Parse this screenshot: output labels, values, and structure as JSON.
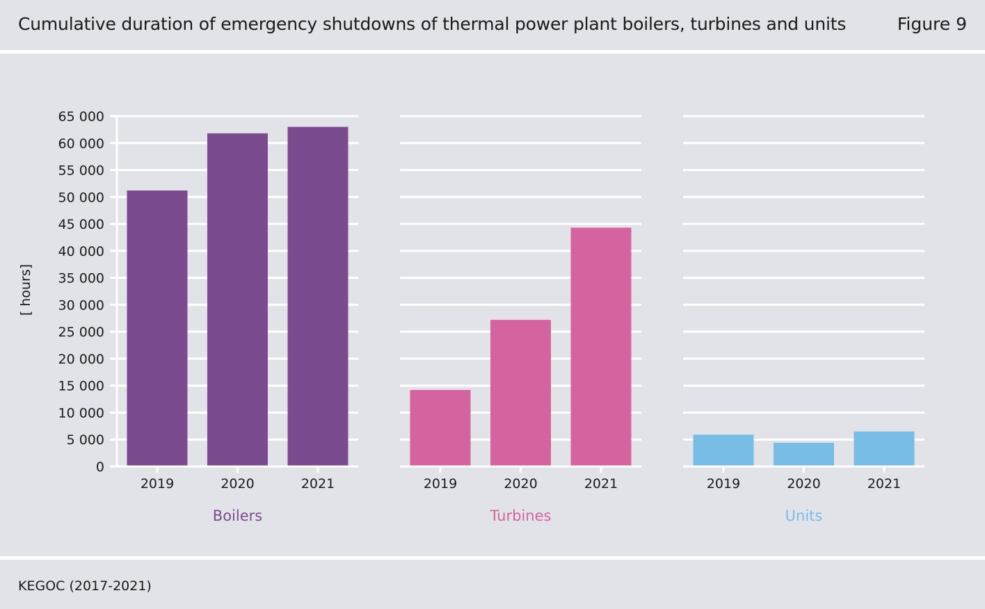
{
  "header": {
    "title": "Cumulative duration of emergency shutdowns of thermal power plant boilers, turbines and units",
    "figure_label": "Figure 9"
  },
  "footer": {
    "source": "KEGOC (2017-2021)"
  },
  "chart_data": {
    "type": "bar",
    "ylabel": "[ hours]",
    "ylim": [
      0,
      65000
    ],
    "yticks": [
      0,
      5000,
      10000,
      15000,
      20000,
      25000,
      30000,
      35000,
      40000,
      45000,
      50000,
      55000,
      60000,
      65000
    ],
    "ytick_labels": [
      "0",
      "5 000",
      "10 000",
      "15 000",
      "20 000",
      "25 000",
      "30 000",
      "35 000",
      "40 000",
      "45 000",
      "50 000",
      "55 000",
      "60 000",
      "65 000"
    ],
    "grid": true,
    "categories": [
      "2019",
      "2020",
      "2021"
    ],
    "groups": [
      {
        "name": "Boilers",
        "color": "#7b4b8f",
        "values": [
          51200,
          61800,
          63000
        ]
      },
      {
        "name": "Turbines",
        "color": "#d4639f",
        "values": [
          14200,
          27200,
          44300
        ]
      },
      {
        "name": "Units",
        "color": "#77bde6",
        "values": [
          5900,
          4400,
          6500
        ]
      }
    ]
  }
}
